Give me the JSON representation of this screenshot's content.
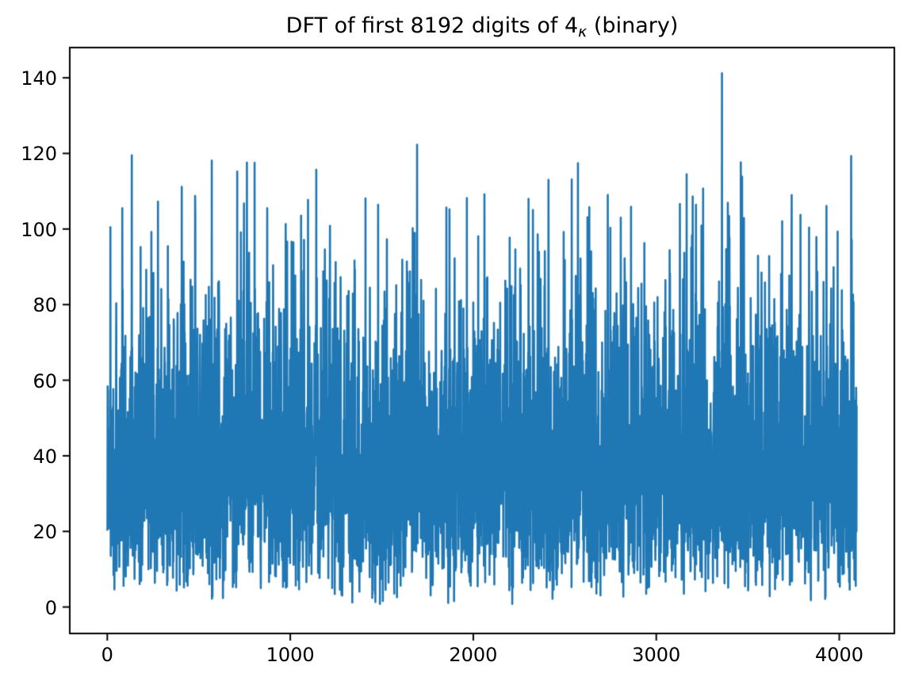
{
  "figure_title": {
    "prefix": "DFT of first 8192 digits of 4",
    "subscript": "κ",
    "suffix": " (binary)"
  },
  "axes_style": {
    "frame_color": "#000000",
    "tick_color": "#000000",
    "background": "#ffffff"
  },
  "chart_data": {
    "type": "line",
    "title": "DFT of first 8192 digits of 4κ (binary)",
    "xlabel": "",
    "ylabel": "",
    "grid": false,
    "legend": null,
    "line_color": "#1f77b4",
    "xlim": [
      -205,
      4301
    ],
    "ylim": [
      -7,
      148
    ],
    "xticks": [
      {
        "value": 0,
        "label": "0"
      },
      {
        "value": 1000,
        "label": "1000"
      },
      {
        "value": 2000,
        "label": "2000"
      },
      {
        "value": 3000,
        "label": "3000"
      },
      {
        "value": 4000,
        "label": "4000"
      }
    ],
    "yticks": [
      {
        "value": 0,
        "label": "0"
      },
      {
        "value": 20,
        "label": "20"
      },
      {
        "value": 40,
        "label": "40"
      },
      {
        "value": 60,
        "label": "60"
      },
      {
        "value": 80,
        "label": "80"
      },
      {
        "value": 100,
        "label": "100"
      },
      {
        "value": 120,
        "label": "120"
      },
      {
        "value": 140,
        "label": "140"
      }
    ],
    "n_points": 4096,
    "x_range": [
      0,
      4095
    ],
    "stats": {
      "approx_mean": 40,
      "approx_band": [
        18,
        62
      ],
      "max": 141.2,
      "min": 1
    },
    "distribution": {
      "kind": "rayleigh",
      "sigma": 32,
      "seed": 1337,
      "min_clip": 0.8,
      "fold_above": 118
    },
    "notable_peaks": [
      [
        17,
        100.5
      ],
      [
        82,
        105.5
      ],
      [
        134,
        119.5
      ],
      [
        407,
        111.2
      ],
      [
        481,
        103.5
      ],
      [
        571,
        118.1
      ],
      [
        710,
        115.2
      ],
      [
        805,
        117.5
      ],
      [
        874,
        105.5
      ],
      [
        1017,
        96.5
      ],
      [
        1411,
        108.1
      ],
      [
        1528,
        97.3
      ],
      [
        1693,
        122.3
      ],
      [
        1870,
        105.2
      ],
      [
        1965,
        108.2
      ],
      [
        2061,
        109.2
      ],
      [
        2230,
        94.6
      ],
      [
        2411,
        113.0
      ],
      [
        2494,
        99.2
      ],
      [
        2572,
        117.4
      ],
      [
        2624,
        103.1
      ],
      [
        2749,
        100.3
      ],
      [
        2862,
        105.9
      ],
      [
        3199,
        108.6
      ],
      [
        3247,
        100.9
      ],
      [
        3359,
        141.2
      ],
      [
        3398,
        103.4
      ],
      [
        3740,
        109.0
      ],
      [
        3835,
        100.4
      ],
      [
        3930,
        106.1
      ],
      [
        4065,
        119.3
      ]
    ]
  }
}
